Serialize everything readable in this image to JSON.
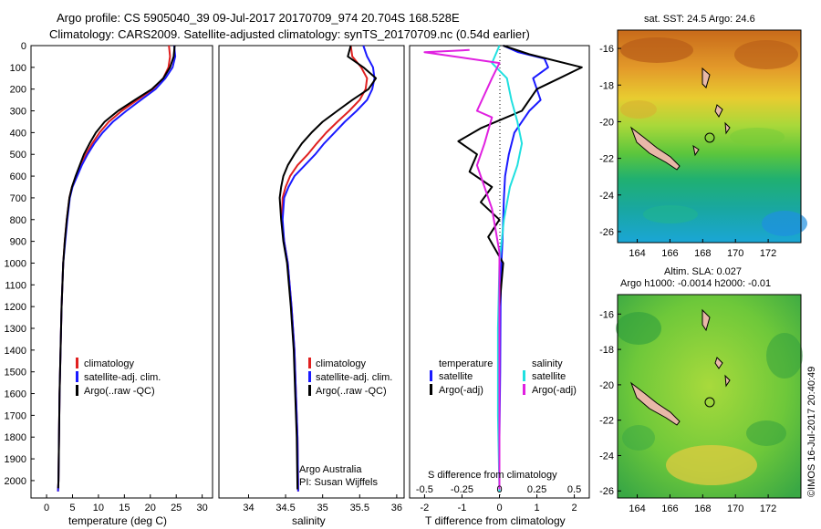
{
  "header": {
    "line1": "Argo profile: CS 5905040_39 09-Jul-2017 20170709_974 20.704S 168.528E",
    "line2": "Climatology: CARS2009. Satellite-adjusted climatology: synTS_20170709.nc (0.54d earlier)"
  },
  "colors": {
    "climatology": "#e02020",
    "satellite": "#1a1aff",
    "argo": "#000000",
    "argo_salinity": "#e020e0",
    "sat_salinity": "#20e0e0"
  },
  "depth_axis": {
    "ticks": [
      "0",
      "100",
      "200",
      "300",
      "400",
      "500",
      "600",
      "700",
      "800",
      "900",
      "1000",
      "1100",
      "1200",
      "1300",
      "1400",
      "1500",
      "1600",
      "1700",
      "1800",
      "1900",
      "2000"
    ]
  },
  "chart_data": [
    {
      "type": "line",
      "name": "temperature",
      "xlabel": "temperature (deg C)",
      "xlim": [
        -3,
        32
      ],
      "ylim": [
        2080,
        0
      ],
      "xticks": [
        "0",
        "5",
        "10",
        "15",
        "20",
        "25",
        "30"
      ],
      "legend": [
        "climatology",
        "satellite-adj. clim.",
        "Argo(..raw -QC)"
      ],
      "series": [
        {
          "name": "climatology",
          "color_key": "climatology",
          "x": [
            23.6,
            23.8,
            23.5,
            22.5,
            20.5,
            17.5,
            14.5,
            12.0,
            10.2,
            8.8,
            7.6,
            6.6,
            5.7,
            4.9,
            4.4,
            3.9,
            3.5,
            3.2,
            2.9,
            2.7,
            2.5,
            2.4,
            2.3,
            2.2
          ],
          "y": [
            0,
            50,
            100,
            150,
            200,
            250,
            300,
            350,
            400,
            450,
            500,
            550,
            600,
            650,
            700,
            800,
            900,
            1000,
            1200,
            1400,
            1600,
            1800,
            2000,
            2050
          ]
        },
        {
          "name": "satellite-adj. clim.",
          "color_key": "satellite",
          "x": [
            24.6,
            24.8,
            24.3,
            22.9,
            21.0,
            18.2,
            15.4,
            12.8,
            10.8,
            9.2,
            7.9,
            6.8,
            5.9,
            5.0,
            4.5,
            4.0,
            3.6,
            3.2,
            2.9,
            2.7,
            2.5,
            2.4,
            2.3,
            2.2
          ],
          "y": [
            0,
            50,
            100,
            150,
            200,
            250,
            300,
            350,
            400,
            450,
            500,
            550,
            600,
            650,
            700,
            800,
            900,
            1000,
            1200,
            1400,
            1600,
            1800,
            2000,
            2050
          ]
        },
        {
          "name": "Argo(..raw -QC)",
          "color_key": "argo",
          "x": [
            24.7,
            24.5,
            23.8,
            22.5,
            20.3,
            17.0,
            13.8,
            11.2,
            9.5,
            8.3,
            7.2,
            6.4,
            5.6,
            4.9,
            4.4,
            3.9,
            3.5,
            3.2,
            2.9,
            2.7,
            2.5,
            2.4,
            2.3,
            2.25
          ],
          "y": [
            0,
            50,
            100,
            150,
            200,
            250,
            300,
            350,
            400,
            450,
            500,
            550,
            600,
            650,
            700,
            800,
            900,
            1000,
            1200,
            1400,
            1600,
            1800,
            2000,
            2035
          ]
        }
      ]
    },
    {
      "type": "line",
      "name": "salinity",
      "xlabel": "salinity",
      "xlim": [
        33.6,
        36.1
      ],
      "ylim": [
        2080,
        0
      ],
      "xticks": [
        "34",
        "34.5",
        "35",
        "35.5",
        "36"
      ],
      "legend": [
        "climatology",
        "satellite-adj. clim.",
        "Argo(..raw -QC)"
      ],
      "annotation": [
        "Argo Australia",
        "PI: Susan Wijffels"
      ],
      "series": [
        {
          "name": "climatology",
          "color_key": "climatology",
          "x": [
            35.38,
            35.4,
            35.52,
            35.6,
            35.58,
            35.5,
            35.36,
            35.2,
            35.05,
            34.92,
            34.8,
            34.66,
            34.56,
            34.5,
            34.46,
            34.45,
            34.48,
            34.53,
            34.58,
            34.62,
            34.64,
            34.66,
            34.67
          ],
          "y": [
            0,
            50,
            100,
            150,
            200,
            250,
            300,
            350,
            400,
            450,
            500,
            550,
            600,
            650,
            700,
            800,
            900,
            1000,
            1200,
            1400,
            1600,
            1800,
            2050
          ]
        },
        {
          "name": "satellite-adj. clim.",
          "color_key": "satellite",
          "x": [
            35.55,
            35.6,
            35.68,
            35.7,
            35.67,
            35.6,
            35.46,
            35.3,
            35.16,
            35.02,
            34.9,
            34.76,
            34.62,
            34.54,
            34.48,
            34.46,
            34.48,
            34.53,
            34.58,
            34.62,
            34.64,
            34.66,
            34.67
          ],
          "y": [
            0,
            50,
            100,
            150,
            200,
            250,
            300,
            350,
            400,
            450,
            500,
            550,
            600,
            650,
            700,
            800,
            900,
            1000,
            1200,
            1400,
            1600,
            1800,
            2050
          ]
        },
        {
          "name": "Argo(..raw -QC)",
          "color_key": "argo",
          "x": [
            35.38,
            35.34,
            35.55,
            35.72,
            35.62,
            35.4,
            35.2,
            35.0,
            34.85,
            34.72,
            34.62,
            34.53,
            34.47,
            34.44,
            34.42,
            34.44,
            34.47,
            34.52,
            34.57,
            34.61,
            34.63,
            34.65,
            34.66
          ],
          "y": [
            0,
            50,
            100,
            150,
            200,
            250,
            300,
            350,
            400,
            450,
            500,
            550,
            600,
            650,
            700,
            800,
            900,
            1000,
            1200,
            1400,
            1600,
            1800,
            2040
          ]
        }
      ]
    },
    {
      "type": "line",
      "name": "differences",
      "xlabel": "T difference from climatology",
      "xlabel_top": "S difference from climatology",
      "xlim": [
        -2.4,
        2.4
      ],
      "ylim": [
        2080,
        0
      ],
      "xticks": [
        "-2",
        "-1",
        "0",
        "1",
        "2"
      ],
      "xticks_s": [
        "-0.5",
        "-0.25",
        "0",
        "0.25",
        "0.5"
      ],
      "legend_temperature": [
        "temperature",
        "satellite",
        "Argo(-adj)"
      ],
      "legend_salinity": [
        "salinity",
        "satellite",
        "Argo(-adj)"
      ],
      "series": [
        {
          "name": "T satellite",
          "color_key": "satellite",
          "x": [
            0.1,
            0.5,
            1.2,
            1.3,
            0.9,
            1.0,
            1.1,
            0.8,
            0.4,
            0.25,
            0.15,
            0.12,
            0.1,
            0.08,
            0.05,
            0.03,
            0.02,
            0.0,
            0.0
          ],
          "y": [
            0,
            30,
            60,
            100,
            150,
            200,
            250,
            300,
            400,
            500,
            600,
            700,
            800,
            900,
            1000,
            1200,
            1500,
            1800,
            2050
          ]
        },
        {
          "name": "T Argo(-adj)",
          "color_key": "argo",
          "x": [
            0.1,
            0.8,
            2.2,
            1.6,
            1.0,
            0.6,
            -0.5,
            -1.1,
            -0.6,
            -0.8,
            -0.2,
            -0.5,
            0.0,
            -0.3,
            0.1,
            0.0,
            0.0,
            0.0
          ],
          "y": [
            0,
            40,
            100,
            150,
            200,
            300,
            380,
            440,
            500,
            580,
            650,
            720,
            800,
            880,
            1000,
            1200,
            1600,
            2040
          ]
        },
        {
          "name": "S satellite",
          "color_key": "sat_salinity",
          "x": [
            0.0,
            -0.05,
            0.05,
            0.08,
            0.12,
            0.15,
            0.12,
            0.07,
            0.03,
            0.0,
            -0.01,
            -0.01,
            0.0
          ],
          "y": [
            0,
            80,
            150,
            250,
            350,
            450,
            550,
            650,
            800,
            1000,
            1300,
            1700,
            2050
          ]
        },
        {
          "name": "S Argo(-adj)",
          "color_key": "argo_salinity",
          "x": [
            -0.2,
            -0.5,
            0.0,
            -0.05,
            -0.15,
            -0.05,
            -0.1,
            -0.15,
            -0.05,
            0.0,
            0.0,
            0.0
          ],
          "y": [
            20,
            30,
            80,
            150,
            300,
            330,
            450,
            550,
            750,
            950,
            1200,
            2040
          ]
        }
      ]
    }
  ],
  "maps": [
    {
      "title": "sat. SST: 24.5 Argo: 24.6",
      "yticks": [
        "-16",
        "-18",
        "-20",
        "-22",
        "-24",
        "-26"
      ],
      "xticks": [
        "164",
        "166",
        "168",
        "170",
        "172"
      ]
    },
    {
      "title_line1": "Altim. SLA: 0.027",
      "title_line2": "Argo h1000: -0.0014 h2000: -0.01",
      "yticks": [
        "-16",
        "-18",
        "-20",
        "-22",
        "-24",
        "-26"
      ],
      "xticks": [
        "164",
        "166",
        "168",
        "170",
        "172"
      ]
    }
  ],
  "credit": "©IMOS 16-Jul-2017 20:40:49"
}
